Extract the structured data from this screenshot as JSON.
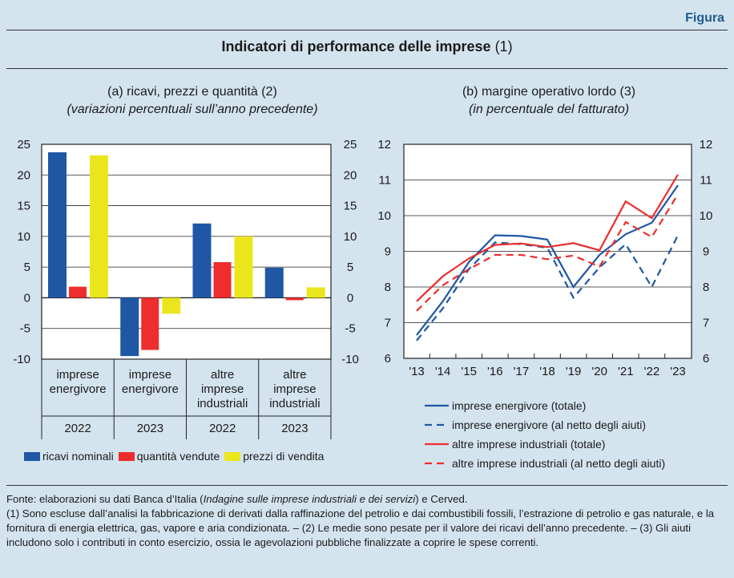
{
  "header": {
    "label": "Figura",
    "title": "Indicatori di performance delle imprese",
    "title_note": "(1)"
  },
  "chart_data": [
    {
      "type": "bar",
      "title": "(a) ricavi, prezzi e quantità (2)",
      "subtitle": "(variazioni percentuali sull’anno precedente)",
      "categories": [
        {
          "label": "imprese energivore",
          "year": "2022"
        },
        {
          "label": "imprese energivore",
          "year": "2023"
        },
        {
          "label": "altre imprese industriali",
          "year": "2022"
        },
        {
          "label": "altre imprese industriali",
          "year": "2023"
        }
      ],
      "series": [
        {
          "name": "ricavi nominali",
          "color": "#1f57a5",
          "values": [
            23.7,
            -9.5,
            12.1,
            4.9
          ]
        },
        {
          "name": "quantità vendute",
          "color": "#ee2d2d",
          "values": [
            1.8,
            -8.5,
            5.8,
            -0.4
          ]
        },
        {
          "name": "prezzi di vendita",
          "color": "#ebe61c",
          "values": [
            23.2,
            -2.6,
            10.0,
            1.7
          ]
        }
      ],
      "ylim": [
        -10,
        25
      ],
      "yticks": [
        "-10",
        "-5",
        "0",
        "5",
        "10",
        "15",
        "20",
        "25"
      ],
      "grid": true,
      "legend": "bottom"
    },
    {
      "type": "line",
      "title": "(b) margine operativo lordo (3)",
      "subtitle": "(in percentuale del fatturato)",
      "x": [
        "'13",
        "'14",
        "'15",
        "'16",
        "'17",
        "'18",
        "'19",
        "'20",
        "'21",
        "'22",
        "'23"
      ],
      "series": [
        {
          "name": "imprese energivore (totale)",
          "color": "#1f57a5",
          "dash": false,
          "values": [
            6.65,
            7.6,
            8.7,
            9.45,
            9.43,
            9.33,
            8.0,
            8.9,
            9.48,
            9.8,
            10.85
          ]
        },
        {
          "name": "imprese energivore (al netto degli aiuti)",
          "color": "#1f57a5",
          "dash": true,
          "values": [
            6.5,
            7.4,
            8.5,
            9.25,
            9.2,
            9.1,
            7.7,
            8.55,
            9.2,
            8.0,
            9.45
          ]
        },
        {
          "name": "altre imprese industriali (totale)",
          "color": "#ee2d2d",
          "dash": false,
          "values": [
            7.6,
            8.3,
            8.8,
            9.18,
            9.22,
            9.12,
            9.23,
            9.03,
            10.4,
            9.93,
            11.15
          ]
        },
        {
          "name": "altre imprese industriali (al netto degli aiuti)",
          "color": "#ee2d2d",
          "dash": true,
          "values": [
            7.33,
            8.05,
            8.5,
            8.9,
            8.9,
            8.78,
            8.88,
            8.57,
            9.82,
            9.4,
            10.6
          ]
        }
      ],
      "ylim": [
        6,
        12
      ],
      "yticks": [
        "6",
        "7",
        "8",
        "9",
        "10",
        "11",
        "12"
      ],
      "grid": true,
      "legend": "bottom"
    }
  ],
  "notes": {
    "source_prefix": "Fonte: elaborazioni su dati Banca d’Italia (",
    "source_italic": "Indagine sulle imprese industriali e dei servizi",
    "source_suffix": ") e Cerved.",
    "text": "(1) Sono escluse dall’analisi la fabbricazione di derivati dalla raffinazione del petrolio e dai combustibili fossili, l’estrazione di petrolio e gas naturale, e la fornitura di energia elettrica, gas, vapore e aria condizionata. – (2) Le medie sono pesate per il valore dei ricavi dell’anno precedente. – (3) Gli aiuti includono solo i contributi in conto esercizio, ossia le agevolazioni pubbliche finalizzate a coprire le spese correnti."
  }
}
